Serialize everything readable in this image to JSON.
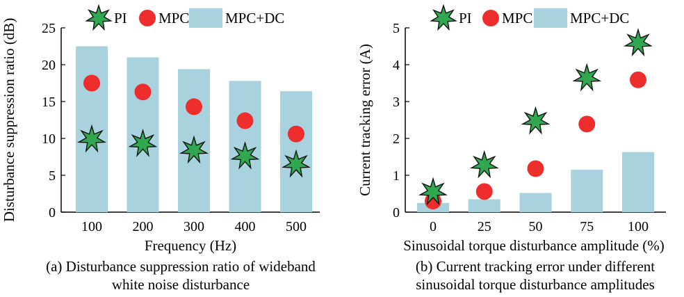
{
  "chart_data": [
    {
      "type": "bar",
      "caption_lines": [
        "(a) Disturbance suppression ratio of wideband",
        "white noise disturbance"
      ],
      "xlabel": "Frequency (Hz)",
      "ylabel": "Disturbance suppression ratio (dB)",
      "categories": [
        "100",
        "200",
        "300",
        "400",
        "500"
      ],
      "ylim": [
        0,
        25
      ],
      "yticks": [
        "0",
        "5",
        "10",
        "15",
        "20",
        "25"
      ],
      "legend": [
        "PI",
        "MPC",
        "MPC+DC"
      ],
      "legend_position": "top",
      "grid": false,
      "series": [
        {
          "name": "MPC+DC",
          "kind": "bar",
          "color": "#a8d3de",
          "values": [
            22.5,
            21.0,
            19.4,
            17.8,
            16.4
          ]
        },
        {
          "name": "MPC",
          "kind": "circle",
          "color": "#ee2d2d",
          "values": [
            17.5,
            16.3,
            14.3,
            12.4,
            10.6
          ]
        },
        {
          "name": "PI",
          "kind": "star",
          "color": "#2fa84f",
          "values": [
            9.9,
            9.3,
            8.4,
            7.6,
            6.5
          ]
        }
      ]
    },
    {
      "type": "bar",
      "caption_lines": [
        "(b) Current tracking error under different",
        "sinusoidal torque disturbance amplitudes"
      ],
      "xlabel": "Sinusoidal torque disturbance amplitude (%)",
      "ylabel": "Current tracking error (A)",
      "categories": [
        "0",
        "25",
        "50",
        "75",
        "100"
      ],
      "ylim": [
        0,
        5
      ],
      "yticks": [
        "0",
        "1",
        "2",
        "3",
        "4",
        "5"
      ],
      "legend": [
        "PI",
        "MPC",
        "MPC+DC"
      ],
      "legend_position": "top",
      "grid": false,
      "series": [
        {
          "name": "MPC+DC",
          "kind": "bar",
          "color": "#a8d3de",
          "values": [
            0.25,
            0.35,
            0.52,
            1.15,
            1.63
          ]
        },
        {
          "name": "MPC",
          "kind": "circle",
          "color": "#ee2d2d",
          "values": [
            0.3,
            0.56,
            1.18,
            2.39,
            3.59
          ]
        },
        {
          "name": "PI",
          "kind": "star",
          "color": "#2fa84f",
          "values": [
            0.55,
            1.28,
            2.47,
            3.64,
            4.59
          ]
        }
      ]
    }
  ]
}
